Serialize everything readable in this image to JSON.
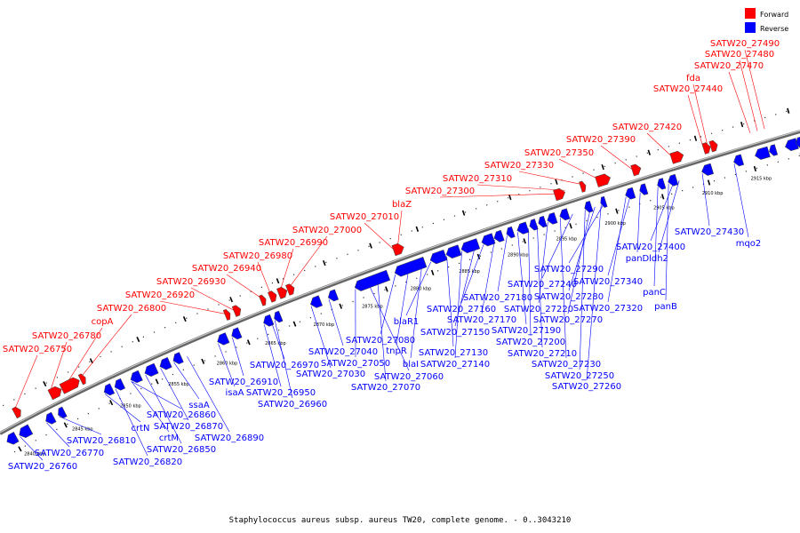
{
  "colors": {
    "forward": "#ff0000",
    "reverse": "#0000ff",
    "backbone": "#888888"
  },
  "legend": {
    "forward": "Forward",
    "reverse": "Reverse"
  },
  "caption": "Staphylococcus aureus subsp. aureus TW20, complete genome. - 0..3043210",
  "ticks": [
    "2840 kbp",
    "2845 kbp",
    "2850 kbp",
    "2855 kbp",
    "2860 kbp",
    "2865 kbp",
    "2870 kbp",
    "2875 kbp",
    "2880 kbp",
    "2885 kbp",
    "2890 kbp",
    "2895 kbp",
    "2900 kbp",
    "2905 kbp",
    "2910 kbp",
    "2915 kbp"
  ],
  "forward_labels": [
    "SATW20_26750",
    "SATW20_26780",
    "copA",
    "SATW20_26800",
    "SATW20_26920",
    "SATW20_26930",
    "SATW20_26940",
    "SATW20_26980",
    "SATW20_26990",
    "SATW20_27000",
    "SATW20_27010",
    "blaZ",
    "SATW20_27300",
    "SATW20_27310",
    "SATW20_27330",
    "SATW20_27350",
    "SATW20_27390",
    "SATW20_27420",
    "SATW20_27440",
    "fda",
    "SATW20_27470",
    "SATW20_27480",
    "SATW20_27490"
  ],
  "reverse_labels": [
    "SATW20_26760",
    "SATW20_26770",
    "SATW20_26810",
    "SATW20_26820",
    "crtN",
    "crtM",
    "SATW20_26850",
    "SATW20_26860",
    "SATW20_26870",
    "ssaA",
    "SATW20_26890",
    "isaA",
    "SATW20_26910",
    "SATW20_26950",
    "SATW20_26960",
    "SATW20_26970",
    "SATW20_27030",
    "SATW20_27040",
    "SATW20_27050",
    "SATW20_27060",
    "SATW20_27070",
    "SATW20_27080",
    "tnpR",
    "blaI",
    "blaR1",
    "SATW20_27130",
    "SATW20_27140",
    "SATW20_27150",
    "SATW20_27160",
    "SATW20_27170",
    "SATW20_27180",
    "SATW20_27190",
    "SATW20_27200",
    "SATW20_27210",
    "SATW20_27220",
    "SATW20_27230",
    "SATW20_27240",
    "SATW20_27250",
    "SATW20_27260",
    "SATW20_27270",
    "SATW20_27280",
    "SATW20_27290",
    "SATW20_27320",
    "SATW20_27340",
    "panD",
    "panC",
    "panB",
    "SATW20_27400",
    "ldh2",
    "SATW20_27430",
    "mqo2"
  ]
}
